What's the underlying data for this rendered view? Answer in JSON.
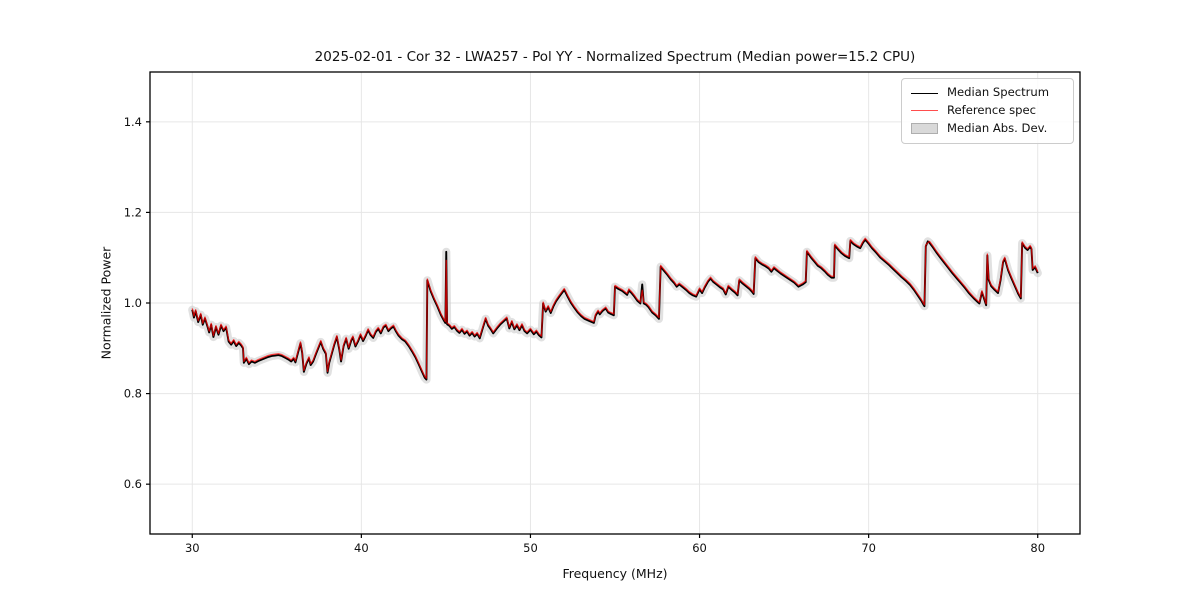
{
  "chart_data": {
    "type": "line",
    "title": "2025-02-01 - Cor 32 - LWA257 - Pol YY - Normalized Spectrum (Median power=15.2 CPU)",
    "xlabel": "Frequency (MHz)",
    "ylabel": "Normalized Power",
    "xlim": [
      27.5,
      82.5
    ],
    "ylim": [
      0.49,
      1.51
    ],
    "x_ticks": [
      30,
      40,
      50,
      60,
      70,
      80
    ],
    "y_ticks": [
      "0.6",
      "0.8",
      "1.0",
      "1.2",
      "1.4"
    ],
    "grid": true,
    "legend_position": "upper right",
    "colors": {
      "median": "#000000",
      "reference": "#ff0000",
      "reference_legend": "#ff4d4d",
      "mad_band": "#c9c9c9",
      "grid": "#e6e6e6",
      "spine": "#000000"
    },
    "mad_halfwidth": 0.009,
    "x": [
      30.0,
      30.1,
      30.2,
      30.35,
      30.5,
      30.62,
      30.75,
      30.9,
      31.0,
      31.12,
      31.25,
      31.4,
      31.55,
      31.7,
      31.85,
      32.0,
      32.15,
      32.3,
      32.45,
      32.6,
      32.75,
      32.9,
      33.0,
      33.05,
      33.2,
      33.35,
      33.5,
      33.7,
      33.9,
      34.1,
      34.3,
      34.5,
      34.7,
      34.9,
      35.1,
      35.3,
      35.5,
      35.7,
      35.85,
      36.0,
      36.1,
      36.25,
      36.4,
      36.5,
      36.6,
      36.75,
      36.9,
      37.0,
      37.15,
      37.3,
      37.45,
      37.6,
      37.75,
      37.9,
      38.0,
      38.1,
      38.25,
      38.4,
      38.55,
      38.7,
      38.8,
      38.95,
      39.1,
      39.25,
      39.4,
      39.5,
      39.65,
      39.8,
      39.95,
      40.1,
      40.25,
      40.4,
      40.55,
      40.7,
      40.85,
      41.0,
      41.15,
      41.3,
      41.45,
      41.6,
      41.75,
      41.9,
      42.05,
      42.2,
      42.4,
      42.6,
      42.8,
      43.0,
      43.2,
      43.4,
      43.6,
      43.75,
      43.85,
      43.9,
      44.1,
      44.3,
      44.5,
      44.7,
      44.9,
      44.97,
      45.02,
      45.07,
      45.2,
      45.35,
      45.5,
      45.65,
      45.8,
      45.95,
      46.1,
      46.25,
      46.4,
      46.55,
      46.7,
      46.85,
      47.0,
      47.2,
      47.35,
      47.5,
      47.65,
      47.8,
      48.0,
      48.2,
      48.4,
      48.6,
      48.75,
      48.9,
      49.05,
      49.2,
      49.35,
      49.5,
      49.65,
      49.8,
      50.0,
      50.2,
      50.35,
      50.5,
      50.65,
      50.75,
      50.9,
      51.05,
      51.2,
      51.35,
      51.5,
      51.7,
      51.9,
      52.0,
      52.2,
      52.4,
      52.6,
      52.8,
      53.0,
      53.2,
      53.5,
      53.75,
      53.85,
      54.0,
      54.1,
      54.25,
      54.45,
      54.6,
      54.75,
      54.93,
      55.0,
      55.2,
      55.45,
      55.72,
      55.82,
      56.0,
      56.15,
      56.32,
      56.5,
      56.61,
      56.7,
      56.85,
      57.0,
      57.2,
      57.4,
      57.6,
      57.7,
      57.9,
      58.1,
      58.3,
      58.5,
      58.65,
      58.8,
      59.0,
      59.2,
      59.4,
      59.6,
      59.8,
      60.0,
      60.15,
      60.3,
      60.5,
      60.65,
      60.8,
      61.0,
      61.2,
      61.4,
      61.55,
      61.7,
      61.9,
      62.1,
      62.25,
      62.35,
      62.55,
      62.75,
      62.95,
      63.1,
      63.2,
      63.3,
      63.5,
      63.7,
      63.9,
      64.1,
      64.25,
      64.4,
      64.6,
      64.8,
      65.0,
      65.2,
      65.4,
      65.6,
      65.85,
      66.1,
      66.28,
      66.35,
      66.6,
      66.8,
      67.0,
      67.2,
      67.4,
      67.6,
      67.8,
      67.95,
      68.0,
      68.2,
      68.4,
      68.6,
      68.85,
      68.92,
      69.1,
      69.3,
      69.5,
      69.65,
      69.8,
      70.0,
      70.2,
      70.45,
      70.7,
      70.95,
      71.2,
      71.45,
      71.7,
      71.95,
      72.2,
      72.45,
      72.7,
      72.9,
      73.1,
      73.25,
      73.3,
      73.38,
      73.5,
      73.6,
      73.8,
      74.0,
      74.2,
      74.45,
      74.7,
      74.95,
      75.2,
      75.45,
      75.7,
      75.95,
      76.2,
      76.45,
      76.55,
      76.7,
      76.85,
      76.95,
      77.02,
      77.1,
      77.25,
      77.45,
      77.65,
      77.8,
      77.95,
      78.05,
      78.25,
      78.45,
      78.65,
      78.85,
      79.0,
      79.08,
      79.25,
      79.4,
      79.55,
      79.63,
      79.7,
      79.85,
      80.0
    ],
    "series": [
      {
        "name": "Median Spectrum",
        "color": "#000000",
        "style": "line",
        "values": [
          0.985,
          0.968,
          0.982,
          0.958,
          0.974,
          0.952,
          0.966,
          0.948,
          0.935,
          0.952,
          0.925,
          0.947,
          0.93,
          0.95,
          0.938,
          0.946,
          0.915,
          0.908,
          0.916,
          0.905,
          0.912,
          0.906,
          0.9,
          0.868,
          0.877,
          0.865,
          0.871,
          0.868,
          0.872,
          0.875,
          0.878,
          0.881,
          0.883,
          0.884,
          0.885,
          0.883,
          0.879,
          0.875,
          0.871,
          0.877,
          0.869,
          0.89,
          0.911,
          0.89,
          0.848,
          0.866,
          0.878,
          0.863,
          0.871,
          0.886,
          0.9,
          0.914,
          0.898,
          0.888,
          0.846,
          0.868,
          0.888,
          0.908,
          0.925,
          0.896,
          0.871,
          0.905,
          0.921,
          0.899,
          0.917,
          0.924,
          0.904,
          0.915,
          0.929,
          0.916,
          0.927,
          0.94,
          0.929,
          0.923,
          0.936,
          0.943,
          0.933,
          0.946,
          0.95,
          0.938,
          0.944,
          0.948,
          0.937,
          0.928,
          0.92,
          0.915,
          0.905,
          0.893,
          0.88,
          0.864,
          0.847,
          0.835,
          0.831,
          1.05,
          1.026,
          1.008,
          0.992,
          0.974,
          0.96,
          0.956,
          1.113,
          0.953,
          0.95,
          0.943,
          0.947,
          0.939,
          0.934,
          0.941,
          0.932,
          0.937,
          0.928,
          0.934,
          0.926,
          0.932,
          0.922,
          0.947,
          0.965,
          0.95,
          0.942,
          0.933,
          0.943,
          0.952,
          0.959,
          0.966,
          0.944,
          0.958,
          0.942,
          0.951,
          0.94,
          0.951,
          0.938,
          0.933,
          0.941,
          0.931,
          0.937,
          0.929,
          0.924,
          0.999,
          0.981,
          0.991,
          0.978,
          0.992,
          1.003,
          1.014,
          1.024,
          1.029,
          1.014,
          1.0,
          0.989,
          0.979,
          0.971,
          0.965,
          0.96,
          0.956,
          0.972,
          0.981,
          0.975,
          0.982,
          0.988,
          0.979,
          0.976,
          0.973,
          1.036,
          1.031,
          1.026,
          1.018,
          1.028,
          1.021,
          1.014,
          1.005,
          0.999,
          1.041,
          0.999,
          0.996,
          0.99,
          0.979,
          0.973,
          0.965,
          1.08,
          1.071,
          1.062,
          1.052,
          1.044,
          1.036,
          1.041,
          1.035,
          1.029,
          1.022,
          1.017,
          1.014,
          1.03,
          1.022,
          1.034,
          1.047,
          1.054,
          1.047,
          1.041,
          1.035,
          1.03,
          1.019,
          1.036,
          1.029,
          1.023,
          1.017,
          1.05,
          1.043,
          1.037,
          1.031,
          1.025,
          1.02,
          1.099,
          1.09,
          1.085,
          1.081,
          1.076,
          1.069,
          1.077,
          1.071,
          1.065,
          1.06,
          1.055,
          1.05,
          1.045,
          1.036,
          1.041,
          1.046,
          1.113,
          1.1,
          1.091,
          1.082,
          1.077,
          1.07,
          1.062,
          1.056,
          1.056,
          1.127,
          1.118,
          1.11,
          1.104,
          1.099,
          1.137,
          1.13,
          1.125,
          1.121,
          1.132,
          1.14,
          1.131,
          1.121,
          1.111,
          1.1,
          1.092,
          1.084,
          1.075,
          1.066,
          1.057,
          1.049,
          1.04,
          1.028,
          1.017,
          1.006,
          0.996,
          0.993,
          1.125,
          1.136,
          1.133,
          1.123,
          1.112,
          1.102,
          1.09,
          1.078,
          1.066,
          1.055,
          1.044,
          1.033,
          1.021,
          1.011,
          1.002,
          0.999,
          1.024,
          1.007,
          0.995,
          1.105,
          1.051,
          1.037,
          1.029,
          1.022,
          1.05,
          1.09,
          1.098,
          1.072,
          1.054,
          1.037,
          1.02,
          1.01,
          1.132,
          1.122,
          1.117,
          1.124,
          1.119,
          1.073,
          1.079,
          1.066
        ]
      },
      {
        "name": "Reference spec",
        "color": "#ff4d4d",
        "style": "line",
        "values": [
          0.988,
          0.971,
          0.985,
          0.961,
          0.977,
          0.955,
          0.969,
          0.951,
          0.938,
          0.955,
          0.928,
          0.95,
          0.933,
          0.953,
          0.941,
          0.949,
          0.918,
          0.911,
          0.919,
          0.908,
          0.915,
          0.909,
          0.903,
          0.871,
          0.88,
          0.868,
          0.874,
          0.871,
          0.875,
          0.878,
          0.881,
          0.884,
          0.886,
          0.887,
          0.888,
          0.886,
          0.882,
          0.878,
          0.874,
          0.88,
          0.872,
          0.893,
          0.914,
          0.893,
          0.851,
          0.869,
          0.881,
          0.866,
          0.874,
          0.889,
          0.903,
          0.917,
          0.901,
          0.891,
          0.849,
          0.871,
          0.891,
          0.911,
          0.928,
          0.899,
          0.874,
          0.908,
          0.924,
          0.902,
          0.92,
          0.927,
          0.907,
          0.918,
          0.932,
          0.919,
          0.93,
          0.943,
          0.932,
          0.926,
          0.939,
          0.946,
          0.936,
          0.949,
          0.953,
          0.941,
          0.947,
          0.951,
          0.94,
          0.931,
          0.923,
          0.918,
          0.908,
          0.896,
          0.883,
          0.867,
          0.85,
          0.838,
          0.834,
          1.053,
          1.029,
          1.011,
          0.995,
          0.977,
          0.963,
          0.959,
          1.094,
          0.956,
          0.953,
          0.946,
          0.95,
          0.942,
          0.937,
          0.944,
          0.935,
          0.94,
          0.931,
          0.937,
          0.929,
          0.935,
          0.925,
          0.95,
          0.968,
          0.953,
          0.945,
          0.936,
          0.946,
          0.955,
          0.962,
          0.969,
          0.947,
          0.961,
          0.945,
          0.954,
          0.943,
          0.954,
          0.941,
          0.936,
          0.944,
          0.934,
          0.94,
          0.932,
          0.927,
          1.002,
          0.984,
          0.994,
          0.981,
          0.995,
          1.006,
          1.017,
          1.027,
          1.032,
          1.017,
          1.003,
          0.992,
          0.982,
          0.974,
          0.968,
          0.963,
          0.959,
          0.975,
          0.984,
          0.978,
          0.985,
          0.991,
          0.982,
          0.979,
          0.976,
          1.039,
          1.034,
          1.029,
          1.021,
          1.031,
          1.024,
          1.017,
          1.008,
          1.002,
          1.028,
          1.002,
          0.999,
          0.993,
          0.982,
          0.976,
          0.968,
          1.083,
          1.074,
          1.065,
          1.055,
          1.047,
          1.039,
          1.044,
          1.038,
          1.032,
          1.025,
          1.02,
          1.017,
          1.033,
          1.025,
          1.037,
          1.05,
          1.057,
          1.05,
          1.044,
          1.038,
          1.033,
          1.022,
          1.039,
          1.032,
          1.026,
          1.02,
          1.053,
          1.046,
          1.04,
          1.034,
          1.028,
          1.023,
          1.102,
          1.093,
          1.088,
          1.084,
          1.079,
          1.072,
          1.08,
          1.074,
          1.068,
          1.063,
          1.058,
          1.053,
          1.048,
          1.039,
          1.044,
          1.049,
          1.116,
          1.103,
          1.094,
          1.085,
          1.08,
          1.073,
          1.065,
          1.059,
          1.059,
          1.13,
          1.121,
          1.113,
          1.107,
          1.102,
          1.14,
          1.133,
          1.128,
          1.124,
          1.135,
          1.143,
          1.134,
          1.124,
          1.114,
          1.103,
          1.095,
          1.087,
          1.078,
          1.069,
          1.06,
          1.052,
          1.043,
          1.031,
          1.02,
          1.009,
          0.999,
          0.996,
          1.128,
          1.133,
          1.136,
          1.126,
          1.115,
          1.105,
          1.093,
          1.081,
          1.069,
          1.058,
          1.047,
          1.036,
          1.024,
          1.014,
          1.005,
          1.002,
          1.027,
          1.01,
          0.998,
          1.108,
          1.054,
          1.04,
          1.032,
          1.025,
          1.053,
          1.093,
          1.101,
          1.075,
          1.057,
          1.04,
          1.023,
          1.013,
          1.135,
          1.125,
          1.12,
          1.127,
          1.122,
          1.076,
          1.082,
          1.069
        ]
      },
      {
        "name": "Median Abs. Dev.",
        "color": "#c9c9c9",
        "style": "band"
      }
    ]
  }
}
